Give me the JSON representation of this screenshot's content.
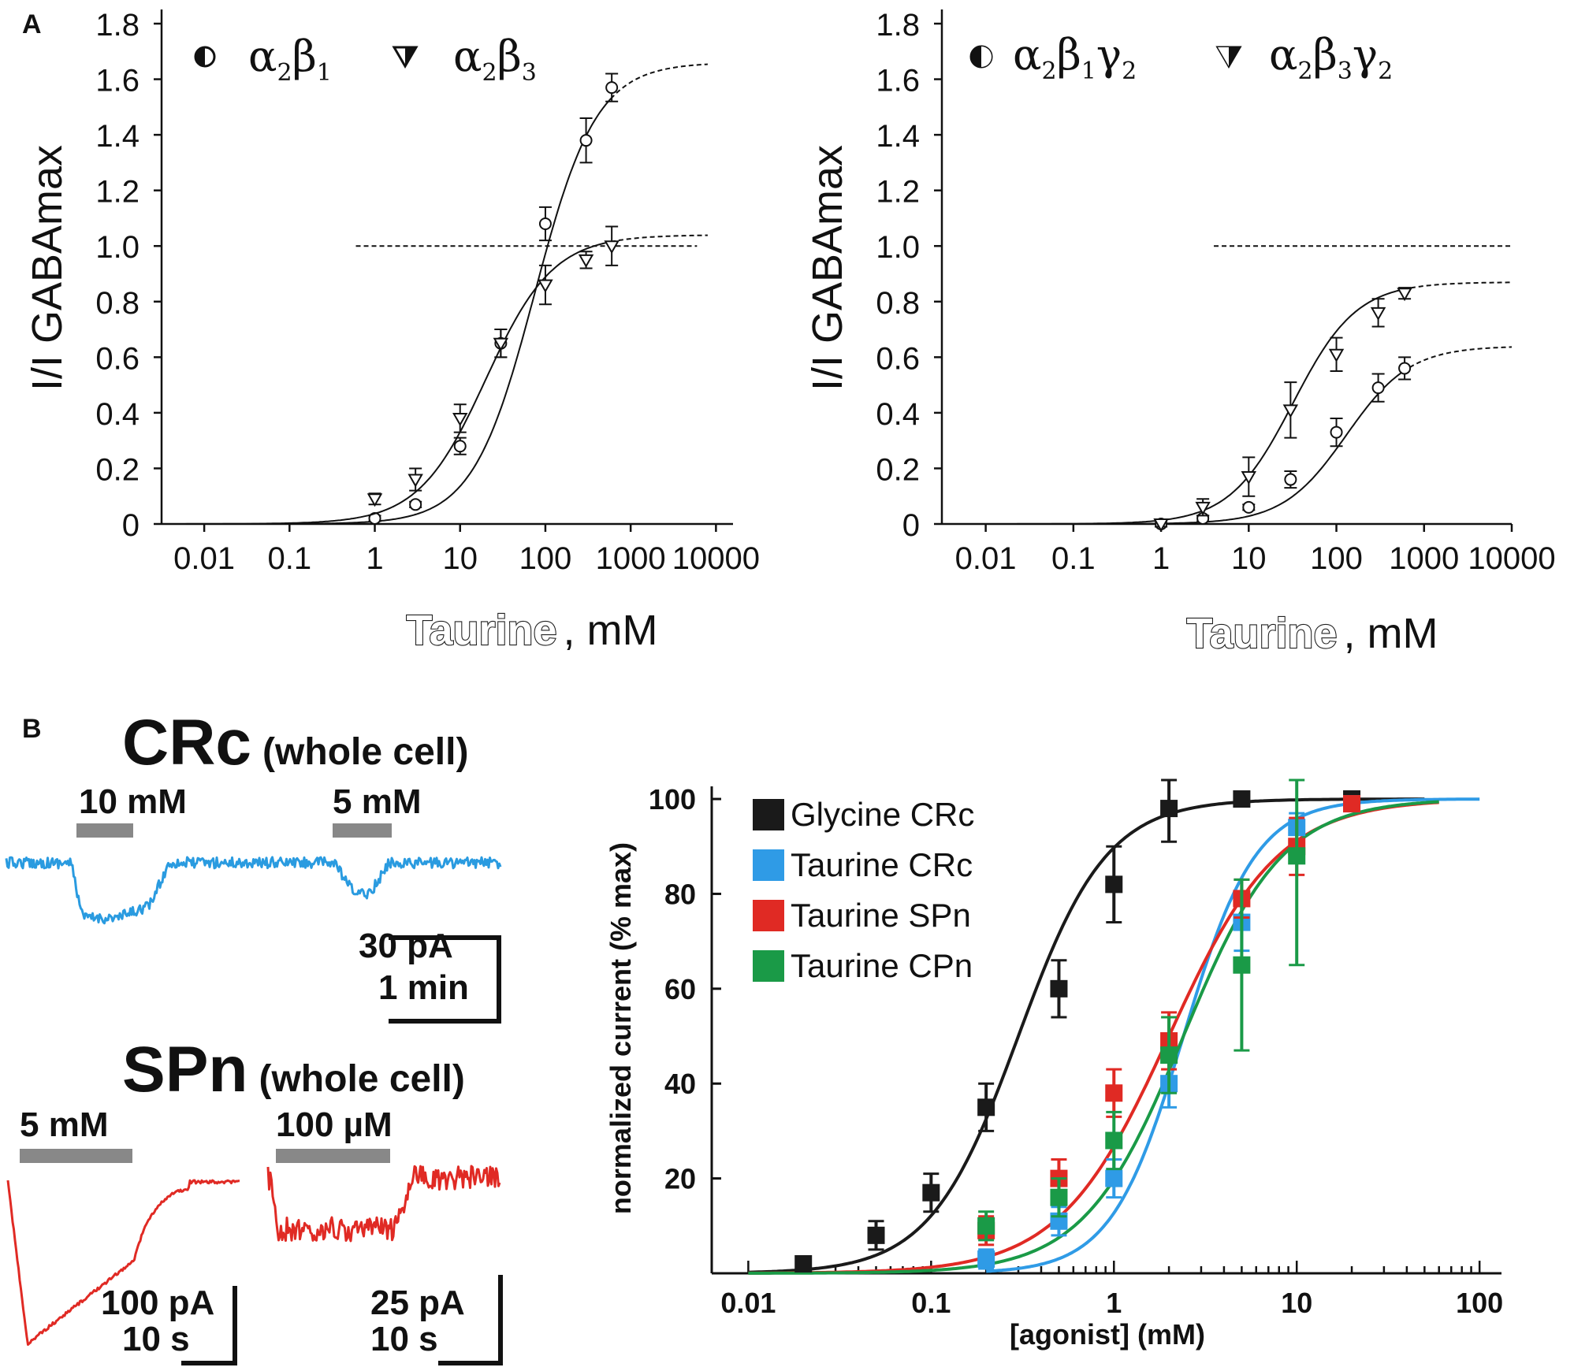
{
  "panel_labels": {
    "a": "A",
    "b": "B"
  },
  "chart_data": [
    {
      "id": "A-left",
      "type": "line",
      "x_scale": "log",
      "ylabel": "I/I GABAmax",
      "xlabel_main": "Taurine",
      "xlabel_unit": ", mM",
      "yticks": [
        "0",
        "0.2",
        "0.4",
        "0.6",
        "0.8",
        "1.0",
        "1.2",
        "1.4",
        "1.6",
        "1.8"
      ],
      "xticks": [
        "0.01",
        "0.1",
        "1",
        "10",
        "100",
        "1000",
        "10000"
      ],
      "ylim": [
        0,
        1.8
      ],
      "xlim_log10": [
        -2.5,
        4.2
      ],
      "legend": [
        {
          "name": "α",
          "sub1": "2",
          "name2": "β",
          "sub2": "1",
          "sub3": "",
          "marker": "half-circle"
        },
        {
          "name": "α",
          "sub1": "2",
          "name2": "β",
          "sub2": "3",
          "sub3": "",
          "marker": "half-triangle"
        }
      ],
      "reference_line": {
        "y": 1.0,
        "x_from": 0.6,
        "x_to": 6000
      },
      "series": [
        {
          "name": "α2β1",
          "marker": "circle",
          "points": [
            [
              1,
              0.02,
              0.01
            ],
            [
              3,
              0.07,
              0.01
            ],
            [
              10,
              0.28,
              0.03
            ],
            [
              30,
              0.65,
              0.05
            ],
            [
              100,
              1.08,
              0.06
            ],
            [
              300,
              1.38,
              0.08
            ],
            [
              600,
              1.57,
              0.05
            ]
          ],
          "fit": {
            "bottom": 0,
            "top": 1.66,
            "ec50": 75,
            "hill": 1.2,
            "x_from": 0.003,
            "x_to": 8000,
            "dash_after": 600
          }
        },
        {
          "name": "α2β3",
          "marker": "triangle",
          "points": [
            [
              1,
              0.09,
              0.02
            ],
            [
              3,
              0.16,
              0.04
            ],
            [
              10,
              0.38,
              0.05
            ],
            [
              30,
              0.65,
              0.05
            ],
            [
              100,
              0.86,
              0.07
            ],
            [
              300,
              0.95,
              0.03
            ],
            [
              600,
              1.0,
              0.07
            ]
          ],
          "fit": {
            "bottom": 0,
            "top": 1.04,
            "ec50": 20,
            "hill": 1.1,
            "x_from": 0.003,
            "x_to": 8000,
            "dash_after": 600
          }
        }
      ]
    },
    {
      "id": "A-right",
      "type": "line",
      "x_scale": "log",
      "ylabel": "I/I GABAmax",
      "xlabel_main": "Taurine",
      "xlabel_unit": ", mM",
      "yticks": [
        "0",
        "0.2",
        "0.4",
        "0.6",
        "0.8",
        "1.0",
        "1.2",
        "1.4",
        "1.6",
        "1.8"
      ],
      "xticks": [
        "0.01",
        "0.1",
        "1",
        "10",
        "100",
        "1000",
        "10000"
      ],
      "ylim": [
        0,
        1.8
      ],
      "xlim_log10": [
        -2.5,
        4.0
      ],
      "legend": [
        {
          "name": "α",
          "sub1": "2",
          "name2": "β",
          "sub2": "1",
          "sub3": "2",
          "marker": "half-circle"
        },
        {
          "name": "α",
          "sub1": "2",
          "name2": "β",
          "sub2": "3",
          "sub3": "2",
          "marker": "half-triangle"
        }
      ],
      "reference_line": {
        "y": 1.0,
        "x_from": 4,
        "x_to": 10000
      },
      "series": [
        {
          "name": "α2β1γ2",
          "marker": "circle",
          "points": [
            [
              1,
              0.0,
              0.01
            ],
            [
              3,
              0.02,
              0.01
            ],
            [
              10,
              0.06,
              0.01
            ],
            [
              30,
              0.16,
              0.03
            ],
            [
              100,
              0.33,
              0.05
            ],
            [
              300,
              0.49,
              0.05
            ],
            [
              600,
              0.56,
              0.04
            ]
          ],
          "fit": {
            "bottom": 0,
            "top": 0.64,
            "ec50": 130,
            "hill": 1.2,
            "x_from": 0.003,
            "x_to": 10000,
            "dash_after": 600
          }
        },
        {
          "name": "α2β3γ2",
          "marker": "triangle",
          "points": [
            [
              1,
              0.0,
              0.01
            ],
            [
              3,
              0.06,
              0.03
            ],
            [
              10,
              0.17,
              0.07
            ],
            [
              30,
              0.41,
              0.1
            ],
            [
              100,
              0.61,
              0.06
            ],
            [
              300,
              0.76,
              0.05
            ],
            [
              600,
              0.83,
              0.02
            ]
          ],
          "fit": {
            "bottom": 0,
            "top": 0.87,
            "ec50": 32,
            "hill": 1.2,
            "x_from": 0.003,
            "x_to": 10000,
            "dash_after": 600
          }
        }
      ]
    },
    {
      "id": "B-right",
      "type": "line",
      "x_scale": "log",
      "ylabel": "normalized current (% max)",
      "xlabel": "[agonist] (mM)",
      "yticks": [
        "20",
        "40",
        "60",
        "80",
        "100"
      ],
      "xticks": [
        "0.01",
        "0.1",
        "1",
        "10",
        "100"
      ],
      "ylim": [
        0,
        102
      ],
      "xlim_log10": [
        -2.2,
        2.12
      ],
      "series": [
        {
          "name": "Glycine CRc",
          "color": "#1a1a1a",
          "points": [
            [
              0.02,
              2,
              1
            ],
            [
              0.05,
              8,
              3
            ],
            [
              0.1,
              17,
              4
            ],
            [
              0.2,
              35,
              5
            ],
            [
              0.5,
              60,
              6
            ],
            [
              1,
              82,
              8
            ],
            [
              2,
              98,
              7
            ],
            [
              5,
              100,
              1
            ],
            [
              20,
              100,
              1
            ]
          ],
          "fit": {
            "ec50": 0.3,
            "hill": 1.8,
            "x_from": 0.01,
            "x_to": 50
          }
        },
        {
          "name": "Taurine CRc",
          "color": "#2f9be6",
          "points": [
            [
              0.2,
              3,
              2
            ],
            [
              0.5,
              11,
              3
            ],
            [
              1,
              20,
              4
            ],
            [
              2,
              40,
              5
            ],
            [
              5,
              74,
              6
            ],
            [
              10,
              94,
              3
            ],
            [
              20,
              99,
              1
            ]
          ],
          "fit": {
            "ec50": 2.4,
            "hill": 2.2,
            "x_from": 0.2,
            "x_to": 100
          }
        },
        {
          "name": "Taurine SPn",
          "color": "#e02a24",
          "points": [
            [
              0.2,
              9,
              3
            ],
            [
              0.5,
              20,
              4
            ],
            [
              1,
              38,
              5
            ],
            [
              2,
              49,
              6
            ],
            [
              5,
              79,
              4
            ],
            [
              10,
              90,
              6
            ],
            [
              20,
              99,
              1
            ]
          ],
          "fit": {
            "ec50": 2.0,
            "hill": 1.45,
            "x_from": 0.01,
            "x_to": 60
          }
        },
        {
          "name": "Taurine CPn",
          "color": "#1a9a47",
          "points": [
            [
              0.2,
              10,
              3
            ],
            [
              0.5,
              16,
              4
            ],
            [
              1,
              28,
              6
            ],
            [
              2,
              46,
              8
            ],
            [
              5,
              65,
              18
            ],
            [
              10,
              88,
              23
            ]
          ],
          "fit": {
            "ec50": 2.4,
            "hill": 1.6,
            "x_from": 0.01,
            "x_to": 60
          }
        }
      ]
    }
  ],
  "traces": {
    "crc": {
      "title": "CRc",
      "subtitle": "(whole cell)",
      "color": "#2a9be0",
      "bar_labels": [
        "10 mM",
        "5 mM"
      ],
      "scale": {
        "amplitude": "30 pA",
        "time": "1 min"
      }
    },
    "spn": {
      "title": "SPn",
      "subtitle": "(whole cell)",
      "color": "#e02a24",
      "bar_labels": [
        "5 mM",
        "100 µM"
      ],
      "scale_left": {
        "amplitude": "100 pA",
        "time": "10 s"
      },
      "scale_right": {
        "amplitude": "25 pA",
        "time": "10 s"
      }
    }
  }
}
